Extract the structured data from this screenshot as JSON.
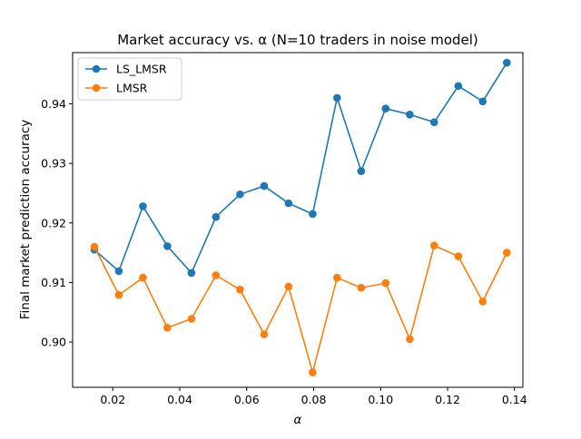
{
  "chart_data": {
    "type": "line",
    "title": "Market accuracy vs. α (N=10 traders in noise model)",
    "xlabel": "α",
    "ylabel": "Final market prediction accuracy",
    "xlim": [
      0.008,
      0.1425
    ],
    "ylim": [
      0.8924,
      0.9486
    ],
    "xticks": [
      0.02,
      0.04,
      0.06,
      0.08,
      0.1,
      0.12,
      0.14
    ],
    "xtick_labels": [
      "0.02",
      "0.04",
      "0.06",
      "0.08",
      "0.10",
      "0.12",
      "0.14"
    ],
    "yticks": [
      0.9,
      0.91,
      0.92,
      0.93,
      0.94
    ],
    "ytick_labels": [
      "0.90",
      "0.91",
      "0.92",
      "0.93",
      "0.94"
    ],
    "grid": false,
    "legend_position": "top-left",
    "x": [
      0.0145,
      0.0218,
      0.029,
      0.0363,
      0.0435,
      0.0508,
      0.058,
      0.0652,
      0.0725,
      0.0797,
      0.087,
      0.0942,
      0.1015,
      0.1087,
      0.116,
      0.1232,
      0.1305,
      0.1377
    ],
    "series": [
      {
        "name": "LS_LMSR",
        "color": "#1f77b4",
        "values": [
          0.9155,
          0.9119,
          0.9228,
          0.9161,
          0.9116,
          0.921,
          0.9248,
          0.9262,
          0.9233,
          0.9215,
          0.941,
          0.9287,
          0.9392,
          0.9382,
          0.9369,
          0.943,
          0.9404,
          0.9469
        ]
      },
      {
        "name": "LMSR",
        "color": "#ff7f0e",
        "values": [
          0.916,
          0.9079,
          0.9108,
          0.9024,
          0.9039,
          0.9112,
          0.9088,
          0.9013,
          0.9093,
          0.8949,
          0.9108,
          0.9091,
          0.9099,
          0.9005,
          0.9162,
          0.9144,
          0.9068,
          0.915
        ]
      }
    ]
  }
}
